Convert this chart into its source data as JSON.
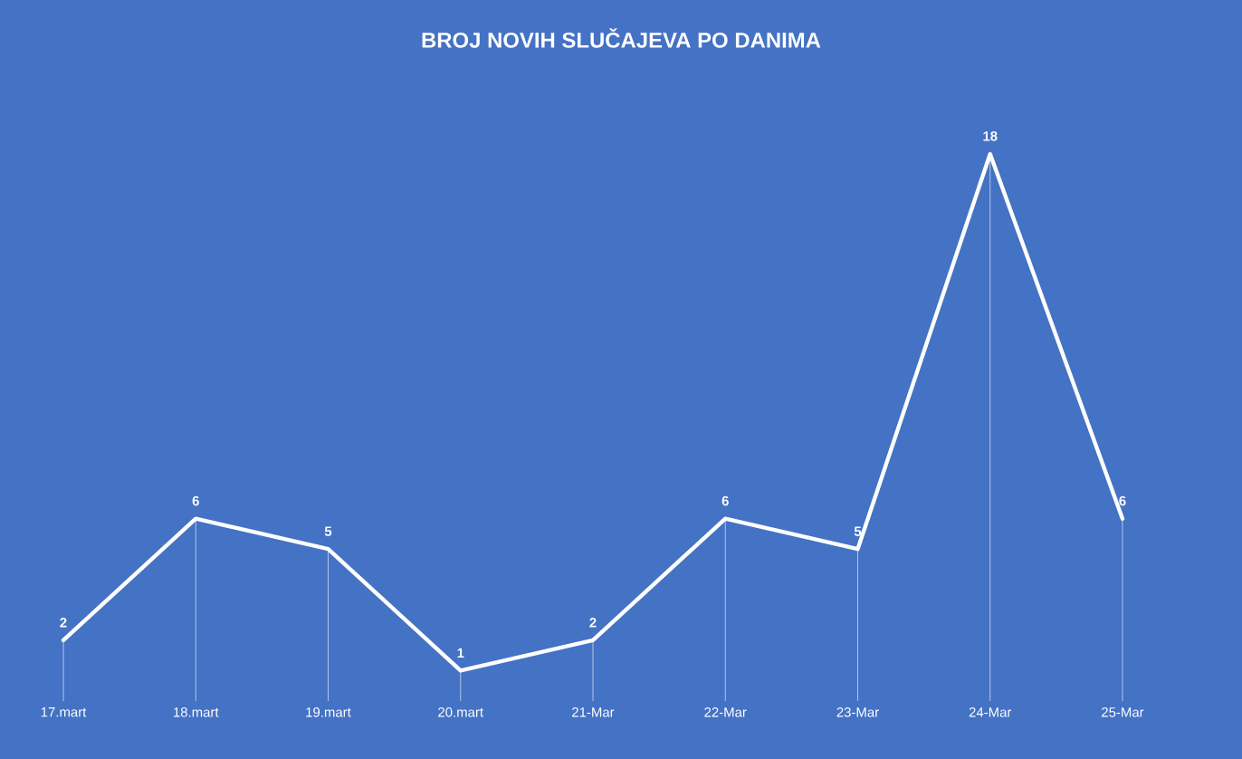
{
  "chart_data": {
    "type": "line",
    "title": "BROJ NOVIH SLUČAJEVA  PO DANIMA",
    "categories": [
      "17.mart",
      "18.mart",
      "19.mart",
      "20.mart",
      "21-Mar",
      "22-Mar",
      "23-Mar",
      "24-Mar",
      "25-Mar"
    ],
    "values": [
      2,
      6,
      5,
      1,
      2,
      6,
      5,
      18,
      6
    ],
    "color": "#ffffff",
    "marker": "none",
    "data_labels": true
  }
}
